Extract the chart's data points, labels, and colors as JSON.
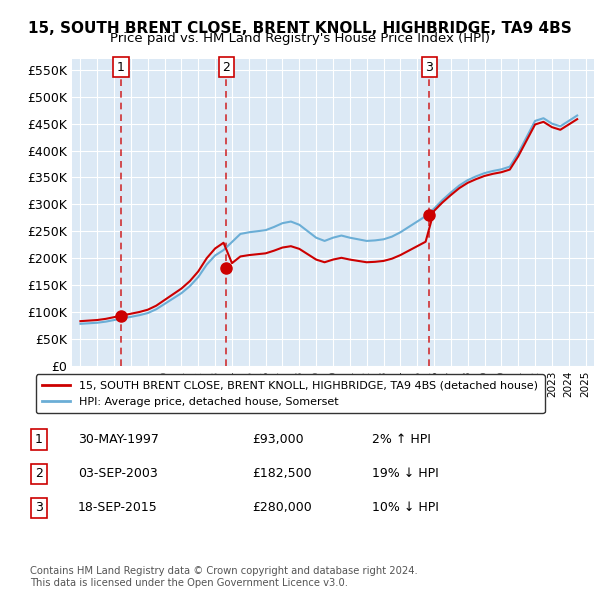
{
  "title": "15, SOUTH BRENT CLOSE, BRENT KNOLL, HIGHBRIDGE, TA9 4BS",
  "subtitle": "Price paid vs. HM Land Registry's House Price Index (HPI)",
  "xlabel": "",
  "ylabel": "",
  "ylim": [
    0,
    570000
  ],
  "yticks": [
    0,
    50000,
    100000,
    150000,
    200000,
    250000,
    300000,
    350000,
    400000,
    450000,
    500000,
    550000
  ],
  "ytick_labels": [
    "£0",
    "£50K",
    "£100K",
    "£150K",
    "£200K",
    "£250K",
    "£300K",
    "£350K",
    "£400K",
    "£450K",
    "£500K",
    "£550K"
  ],
  "bg_color": "#dce9f5",
  "plot_bg_color": "#dce9f5",
  "line_color_hpi": "#6baed6",
  "line_color_price": "#cc0000",
  "dot_color": "#cc0000",
  "sale_dates": [
    1997.41,
    2003.67,
    2015.72
  ],
  "sale_prices": [
    93000,
    182500,
    280000
  ],
  "sale_labels": [
    "1",
    "2",
    "3"
  ],
  "dashed_line_color": "#cc0000",
  "legend_entries": [
    "15, SOUTH BRENT CLOSE, BRENT KNOLL, HIGHBRIDGE, TA9 4BS (detached house)",
    "HPI: Average price, detached house, Somerset"
  ],
  "table_rows": [
    [
      "1",
      "30-MAY-1997",
      "£93,000",
      "2% ↑ HPI"
    ],
    [
      "2",
      "03-SEP-2003",
      "£182,500",
      "19% ↓ HPI"
    ],
    [
      "3",
      "18-SEP-2015",
      "£280,000",
      "10% ↓ HPI"
    ]
  ],
  "footer": "Contains HM Land Registry data © Crown copyright and database right 2024.\nThis data is licensed under the Open Government Licence v3.0.",
  "xlim_start": 1994.5,
  "xlim_end": 2025.5
}
